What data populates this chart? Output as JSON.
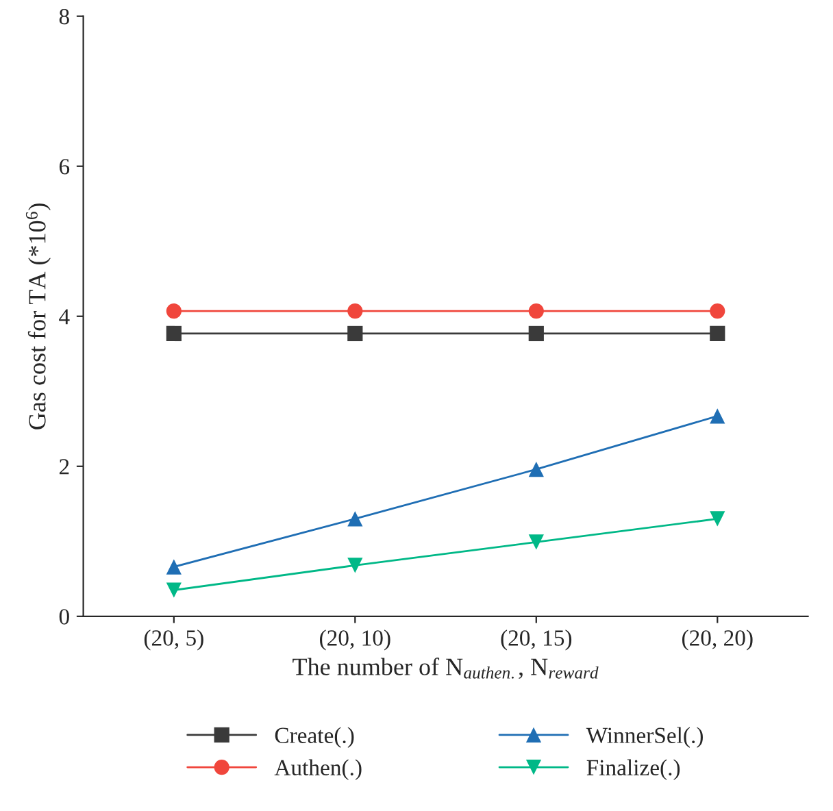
{
  "chart_data": {
    "type": "line",
    "xlabel": "The number of N$_{authen.}$, N$_{reward}$",
    "ylabel": "Gas cost for TA (*10$^{6}$)",
    "categories": [
      "(20, 5)",
      "(20, 10)",
      "(20, 15)",
      "(20, 20)"
    ],
    "series": [
      {
        "name": "Create(.)",
        "color": "#3a3a3a",
        "marker": "square",
        "values": [
          3.77,
          3.77,
          3.77,
          3.77
        ]
      },
      {
        "name": "Authen(.)",
        "color": "#f0463c",
        "marker": "circle",
        "values": [
          4.07,
          4.07,
          4.07,
          4.07
        ]
      },
      {
        "name": "WinnerSel(.)",
        "color": "#1f6eb4",
        "marker": "triangle",
        "values": [
          0.66,
          1.3,
          1.96,
          2.67
        ]
      },
      {
        "name": "Finalize(.)",
        "color": "#00b887",
        "marker": "triangle_down",
        "values": [
          0.35,
          0.68,
          0.99,
          1.3
        ]
      }
    ],
    "ylim": [
      0,
      8
    ],
    "yticks": [
      0,
      2,
      4,
      6,
      8
    ],
    "grid": false,
    "legend": "bottom",
    "line_style": "solid"
  }
}
